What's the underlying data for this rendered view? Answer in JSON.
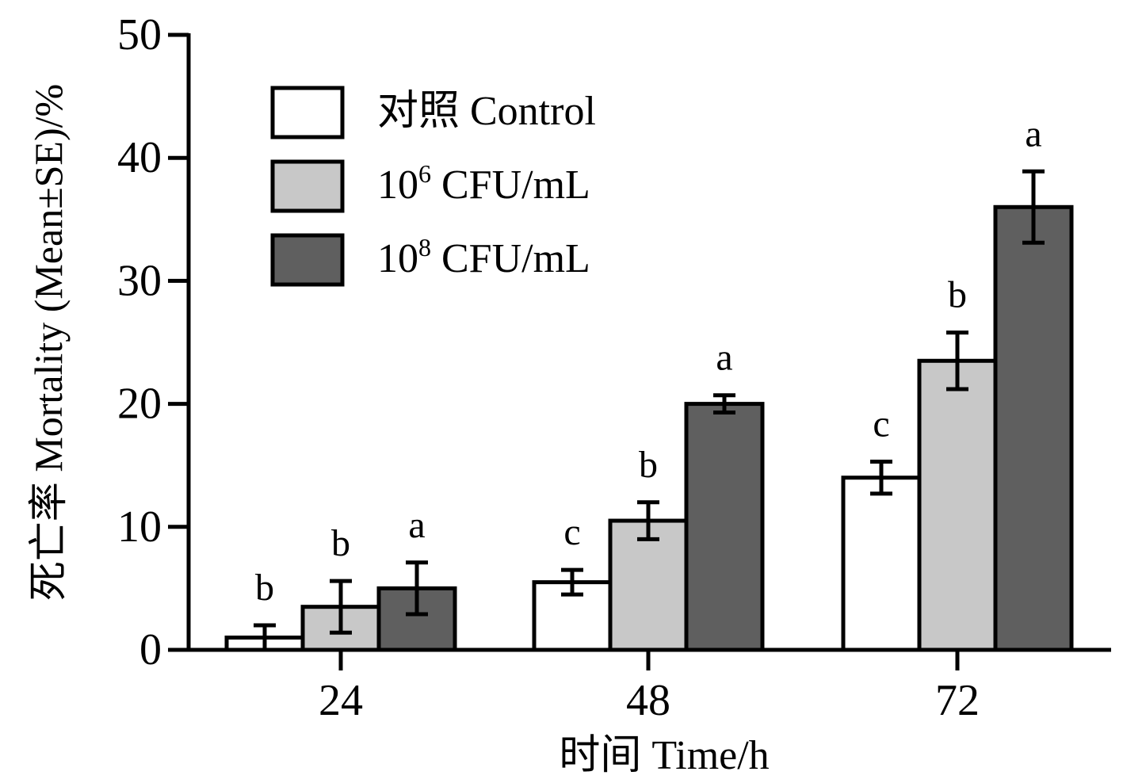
{
  "chart_data": {
    "type": "bar",
    "title": "",
    "xlabel": "时间  Time/h",
    "ylabel": "死亡率  Mortality (Mean±SE)/%",
    "ylim": [
      0,
      50
    ],
    "yticks": [
      "0",
      "10",
      "20",
      "30",
      "40",
      "50"
    ],
    "categories": [
      "24",
      "48",
      "72"
    ],
    "series": [
      {
        "name": "对照  Control",
        "color": "#ffffff",
        "values": [
          1,
          5.5,
          14
        ],
        "errors": [
          1,
          1,
          1.3
        ],
        "labels": [
          "b",
          "c",
          "c"
        ]
      },
      {
        "name": "10^6 CFU/mL",
        "legend_base": "10",
        "legend_exp": "6",
        "legend_unit": " CFU/mL",
        "color": "#c8c8c8",
        "values": [
          3.5,
          10.5,
          23.5
        ],
        "errors": [
          2.1,
          1.5,
          2.3
        ],
        "labels": [
          "b",
          "b",
          "b"
        ]
      },
      {
        "name": "10^8 CFU/mL",
        "legend_base": "10",
        "legend_exp": "8",
        "legend_unit": " CFU/mL",
        "color": "#5f5f5f",
        "values": [
          5,
          20,
          36
        ],
        "errors": [
          2.1,
          0.7,
          2.9
        ],
        "labels": [
          "a",
          "a",
          "a"
        ]
      }
    ],
    "legend_position": "top-left"
  }
}
